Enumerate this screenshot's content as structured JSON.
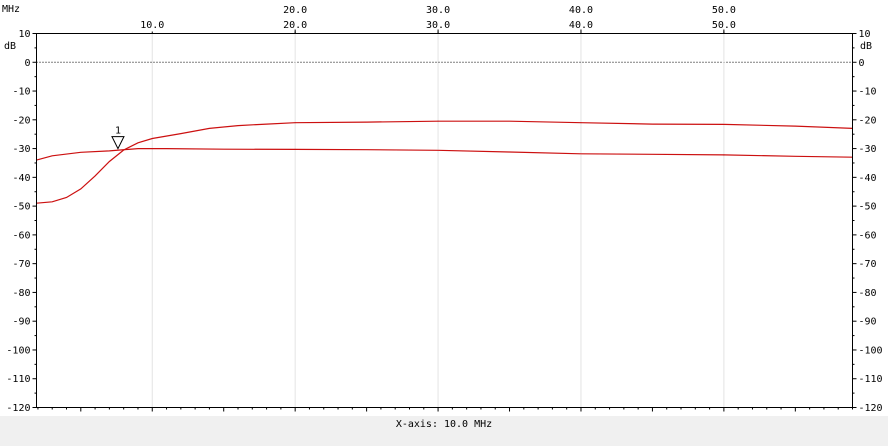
{
  "header": {
    "x_unit": "MHz",
    "y_unit_left": "dB",
    "y_unit_right": "dB"
  },
  "footer": {
    "x_axis_label": "X-axis: 10.0 MHz"
  },
  "colors": {
    "trace": "#cc1010",
    "frame": "#000000",
    "grid": "#c8c8c8",
    "footer_bg": "#f0f0f0"
  },
  "chart_data": {
    "type": "line",
    "x_unit": "MHz",
    "y_unit": "dB",
    "xlim": [
      1.9,
      59.0
    ],
    "ylim": [
      -120,
      10
    ],
    "x_ticks_top": [
      "20.0",
      "30.0",
      "40.0",
      "50.0"
    ],
    "x_ticks_bottom": [
      "10.0",
      "20.0",
      "30.0",
      "40.0",
      "50.0"
    ],
    "y_ticks": [
      "10",
      "0",
      "-10",
      "-20",
      "-30",
      "-40",
      "-50",
      "-60",
      "-70",
      "-80",
      "-90",
      "-100",
      "-110",
      "-120"
    ],
    "reference_line_y": 0,
    "grid": true,
    "marker": {
      "label": "1",
      "x": 7.6,
      "y": -30
    },
    "series": [
      {
        "color": "#cc1010",
        "x": [
          1.9,
          3.0,
          4.0,
          5.0,
          6.0,
          7.0,
          8.0,
          9.0,
          10.0,
          12.0,
          14.0,
          16.0,
          18.0,
          20.0,
          25.0,
          30.0,
          35.0,
          40.0,
          45.0,
          50.0,
          55.0,
          59.0
        ],
        "y": [
          -49,
          -48.5,
          -47,
          -44,
          -39.5,
          -34.5,
          -30.5,
          -28,
          -26.5,
          -24.8,
          -23,
          -22,
          -21.5,
          -21,
          -20.8,
          -20.5,
          -20.5,
          -21,
          -21.5,
          -21.6,
          -22.2,
          -23
        ]
      },
      {
        "color": "#cc1010",
        "x": [
          1.9,
          3.0,
          5.0,
          7.0,
          9.0,
          11.0,
          15.0,
          20.0,
          25.0,
          30.0,
          35.0,
          40.0,
          45.0,
          50.0,
          55.0,
          59.0
        ],
        "y": [
          -34,
          -32.5,
          -31.3,
          -30.8,
          -30,
          -30,
          -30.2,
          -30.3,
          -30.4,
          -30.6,
          -31.2,
          -31.8,
          -32,
          -32.2,
          -32.7,
          -33
        ]
      }
    ]
  }
}
